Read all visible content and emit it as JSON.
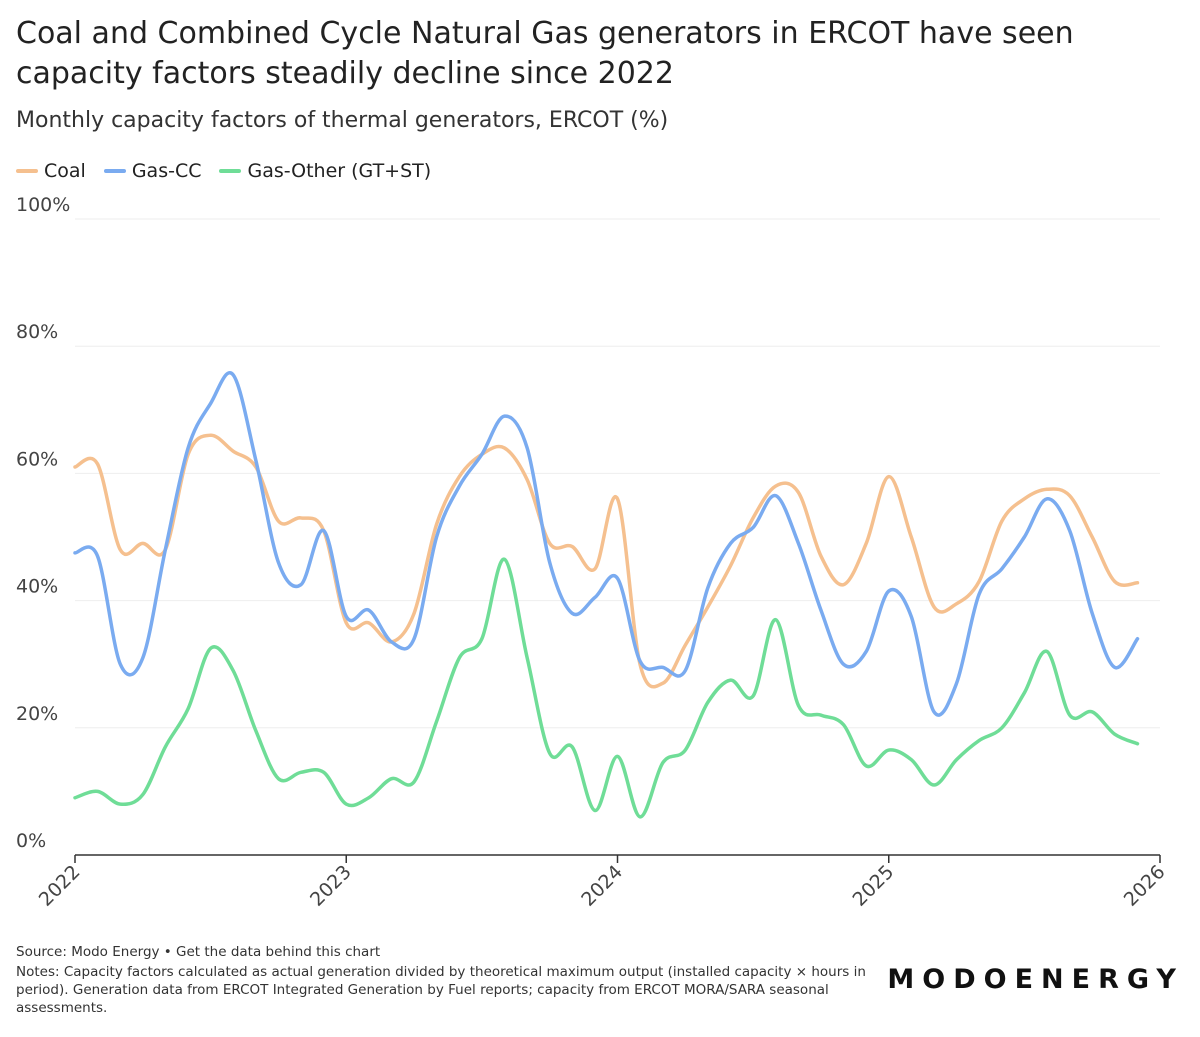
{
  "chart_data": {
    "type": "line",
    "title": "Coal and Combined Cycle Natural Gas generators in ERCOT have seen capacity factors steadily decline since 2022",
    "subtitle": "Monthly capacity factors of thermal generators, ERCOT (%)",
    "x": [
      2022,
      2022.083,
      2022.167,
      2022.25,
      2022.333,
      2022.417,
      2022.5,
      2022.583,
      2022.667,
      2022.75,
      2022.833,
      2022.917,
      2023,
      2023.083,
      2023.167,
      2023.25,
      2023.333,
      2023.417,
      2023.5,
      2023.583,
      2023.667,
      2023.75,
      2023.833,
      2023.917,
      2024,
      2024.083,
      2024.167,
      2024.25,
      2024.333,
      2024.417,
      2024.5,
      2024.583,
      2024.667,
      2024.75,
      2024.833,
      2024.917,
      2025,
      2025.083,
      2025.167,
      2025.25,
      2025.333,
      2025.417,
      2025.5,
      2025.583,
      2025.667,
      2025.75,
      2025.833,
      2025.917
    ],
    "series": [
      {
        "name": "Coal",
        "color": "#f5c08f",
        "values": [
          61,
          61.5,
          48,
          49,
          48,
          63,
          66,
          63.5,
          61,
          52.5,
          53,
          51,
          36.5,
          36.5,
          33.5,
          38,
          52,
          59.5,
          63,
          64,
          59,
          49,
          48.5,
          45,
          56,
          30,
          27,
          33,
          39,
          45.5,
          53,
          58,
          57,
          47,
          42.5,
          49,
          59.5,
          50,
          39,
          39.5,
          43,
          52.5,
          56,
          57.5,
          56.5,
          50,
          43,
          42.8
        ]
      },
      {
        "name": "Gas-CC",
        "color": "#7aabf0",
        "values": [
          47.5,
          47,
          30,
          31,
          48,
          64,
          71,
          75.5,
          62,
          46,
          42.5,
          51,
          37.5,
          38.5,
          33.5,
          34,
          50,
          58,
          63,
          69,
          64,
          46,
          38,
          40.5,
          43.5,
          30.5,
          29.5,
          29,
          42,
          49,
          51.5,
          56.5,
          49,
          38.5,
          30,
          32,
          41.5,
          37.5,
          22.5,
          27,
          41,
          45,
          50,
          56,
          51,
          38,
          29.5,
          34
        ]
      },
      {
        "name": "Gas-Other (GT+ST)",
        "color": "#6fdd97",
        "values": [
          9,
          10,
          8,
          9.5,
          17,
          23,
          32.5,
          29,
          19.5,
          12,
          13,
          13,
          8,
          9,
          12,
          11.5,
          21,
          31,
          34,
          46.5,
          31,
          16,
          17,
          7,
          15.5,
          6,
          14.5,
          16.5,
          24,
          27.5,
          25,
          37,
          23.5,
          22,
          20.5,
          14,
          16.5,
          15,
          11,
          15,
          18,
          20,
          25.5,
          32,
          22,
          22.5,
          19,
          17.5
        ]
      }
    ],
    "xlim": [
      2022,
      2026
    ],
    "xticks": [
      2022,
      2023,
      2024,
      2025,
      2026
    ],
    "ylim": [
      0,
      100
    ],
    "yticks": [
      {
        "value": 0,
        "label": "0%"
      },
      {
        "value": 20,
        "label": "20%"
      },
      {
        "value": 40,
        "label": "40%"
      },
      {
        "value": 60,
        "label": "60%"
      },
      {
        "value": 80,
        "label": "80%"
      },
      {
        "value": 100,
        "label": "100%"
      }
    ],
    "grid": true,
    "source": "Source: Modo Energy • Get the data behind this chart",
    "notes": "Notes: Capacity factors calculated as actual generation divided by theoretical maximum output (installed capacity × hours in period). Generation data from ERCOT Integrated Generation by Fuel reports; capacity from ERCOT MORA/SARA seasonal assessments.",
    "logo": "MODOENERGY"
  }
}
